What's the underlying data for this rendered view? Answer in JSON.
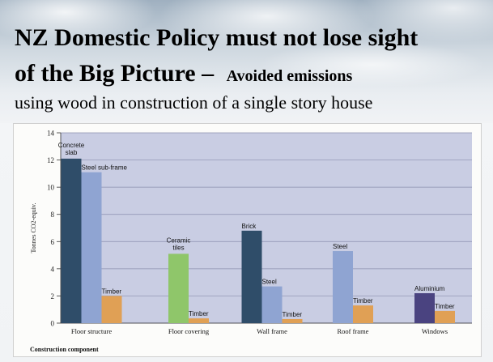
{
  "slide": {
    "title_line1": "NZ Domestic Policy must not lose sight",
    "title_line2": "of the Big Picture",
    "title_dash": " – ",
    "title_emphasis": "Avoided emissions",
    "subtitle": "using wood in construction of a single story house"
  },
  "colors": {
    "plot_bg": "#c9cde3",
    "concrete": "#2f4d69",
    "steel": "#8fa4d2",
    "timber": "#e0a055",
    "ceramic": "#8fc66a",
    "aluminium": "#4a4380"
  },
  "chart_data": {
    "type": "bar",
    "xlabel": "Construction component",
    "ylabel": "Tonnes CO2-equiv.",
    "ylim": [
      0,
      14
    ],
    "yticks": [
      0,
      2,
      4,
      6,
      8,
      10,
      12,
      14
    ],
    "grid": true,
    "groups": [
      {
        "category": "Floor structure",
        "bars": [
          {
            "label": "Concrete slab",
            "value": 12.1,
            "material": "concrete"
          },
          {
            "label": "Steel sub-frame",
            "value": 11.1,
            "material": "steel"
          },
          {
            "label": "Timber",
            "value": 2.0,
            "material": "timber"
          }
        ]
      },
      {
        "category": "Floor covering",
        "bars": [
          {
            "label": "Ceramic tiles",
            "value": 5.1,
            "material": "ceramic"
          },
          {
            "label": "Timber",
            "value": 0.35,
            "material": "timber"
          }
        ]
      },
      {
        "category": "Wall frame",
        "bars": [
          {
            "label": "Brick",
            "value": 6.8,
            "material": "concrete"
          },
          {
            "label": "Steel",
            "value": 2.7,
            "material": "steel"
          },
          {
            "label": "Timber",
            "value": 0.3,
            "material": "timber"
          }
        ]
      },
      {
        "category": "Roof frame",
        "bars": [
          {
            "label": "Steel",
            "value": 5.3,
            "material": "steel"
          },
          {
            "label": "Timber",
            "value": 1.3,
            "material": "timber"
          }
        ]
      },
      {
        "category": "Windows",
        "bars": [
          {
            "label": "Aluminium",
            "value": 2.2,
            "material": "aluminium"
          },
          {
            "label": "Timber",
            "value": 0.9,
            "material": "timber"
          }
        ]
      }
    ]
  }
}
